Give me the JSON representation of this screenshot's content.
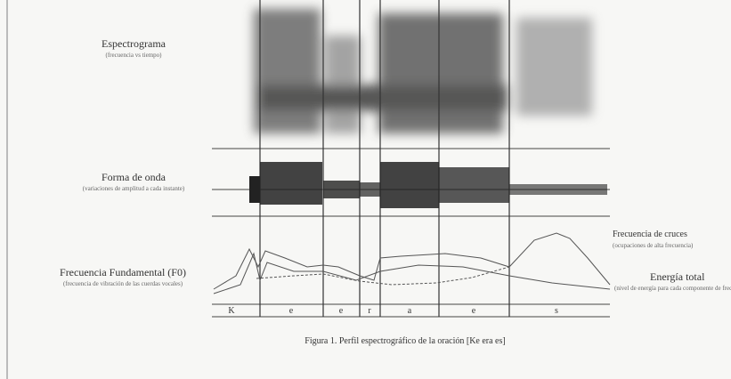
{
  "figure": {
    "spectrogram": {
      "title": "Espectrograma",
      "subtitle": "(frecuencia vs tiempo)"
    },
    "waveform": {
      "title": "Forma de onda",
      "subtitle": "(variaciones de amplitud a cada instante)"
    },
    "f0": {
      "title": "Frecuencia Fundamental (F0)",
      "subtitle": "(frecuencia de vibración de las cuerdas vocales)"
    },
    "zero_cross": {
      "title": "Frecuencia de cruces",
      "subtitle": "(ocupaciones de alta frecuencia)"
    },
    "energy": {
      "title": "Energía total",
      "subtitle": "(nivel de energía para cada componente de frecuencia)"
    },
    "segments": [
      "K",
      "e",
      "e",
      "r",
      "a",
      "e",
      "s"
    ],
    "caption": "Figura 1. Perfil espectrográfico de la oración [Ke era es]"
  }
}
